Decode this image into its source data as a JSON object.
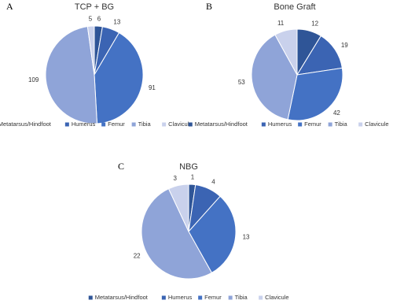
{
  "chart_data": [
    {
      "type": "pie",
      "panel_label": "A",
      "title": "TCP + BG",
      "categories": [
        "Metatarsus/Hindfoot",
        "Humerus",
        "Femur",
        "Tibia",
        "Clavicule"
      ],
      "values": [
        6,
        13,
        91,
        109,
        5
      ],
      "colors": [
        "#2f5597",
        "#3b64b3",
        "#4472c4",
        "#8fa4d8",
        "#c9d1ec"
      ]
    },
    {
      "type": "pie",
      "panel_label": "B",
      "title": "Bone Graft",
      "categories": [
        "Metatarsus/Hindfoot",
        "Humerus",
        "Femur",
        "Tibia",
        "Clavicule"
      ],
      "values": [
        12,
        19,
        42,
        53,
        11
      ],
      "colors": [
        "#2f5597",
        "#3b64b3",
        "#4472c4",
        "#8fa4d8",
        "#c9d1ec"
      ]
    },
    {
      "type": "pie",
      "panel_label": "C",
      "title": "NBG",
      "categories": [
        "Metatarsus/Hindfoot",
        "Humerus",
        "Femur",
        "Tibia",
        "Clavicule"
      ],
      "values": [
        1,
        4,
        13,
        22,
        3
      ],
      "colors": [
        "#2f5597",
        "#3b64b3",
        "#4472c4",
        "#8fa4d8",
        "#c9d1ec"
      ]
    }
  ]
}
